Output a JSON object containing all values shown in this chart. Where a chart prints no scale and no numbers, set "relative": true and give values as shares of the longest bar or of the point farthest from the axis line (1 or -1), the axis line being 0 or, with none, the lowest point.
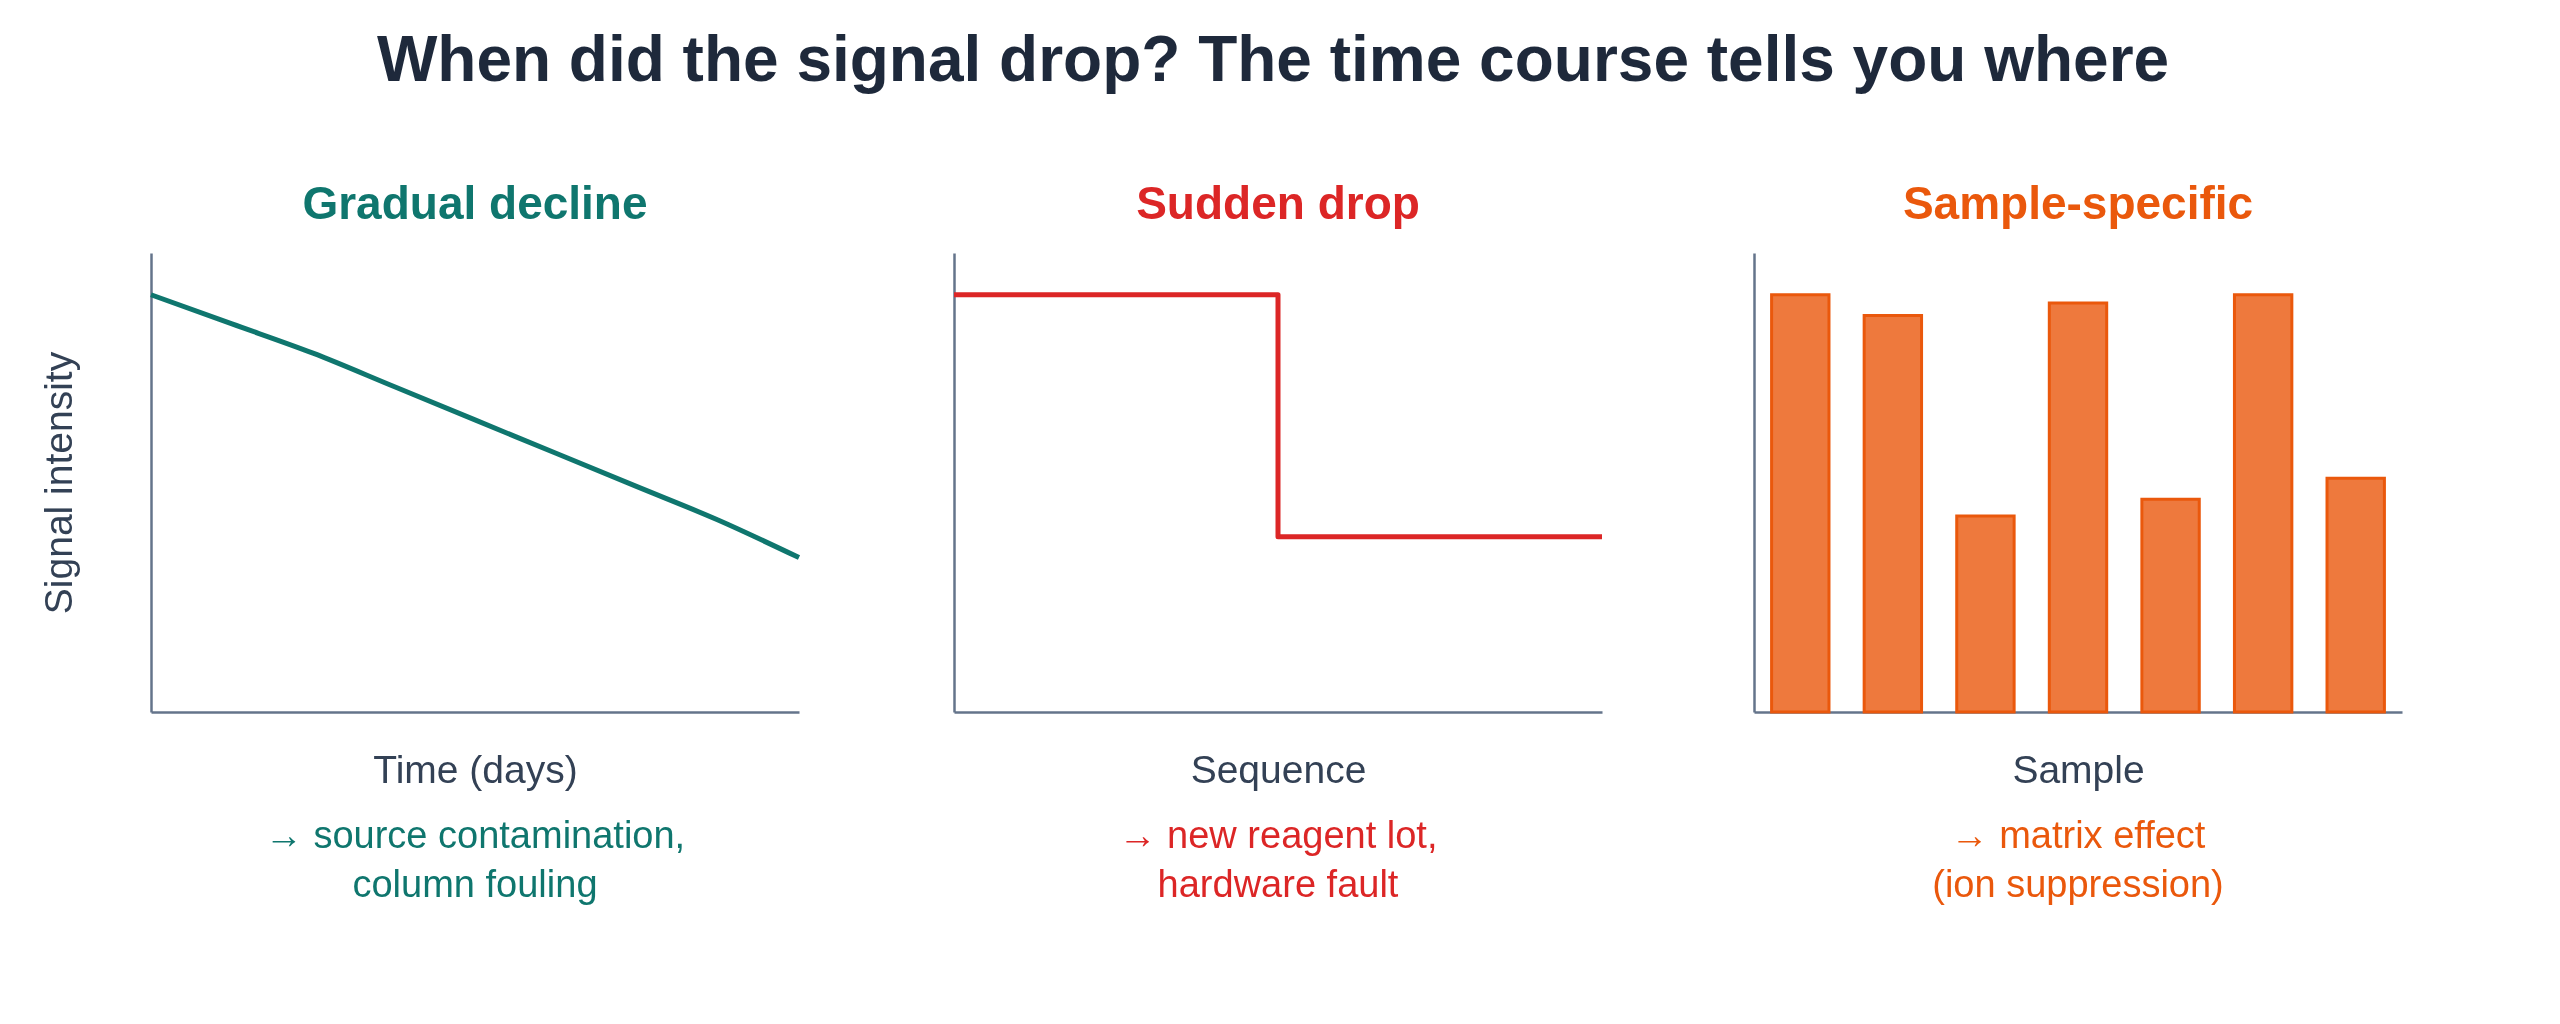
{
  "chart_data": [
    {
      "type": "other",
      "title": "When did the signal drop? The time course tells you where"
    },
    {
      "type": "line",
      "title": "Gradual decline",
      "xlabel": "Time (days)",
      "ylabel": "Signal intensity",
      "annotations": [
        "→ source contamination,\ncolumn fouling"
      ],
      "relative": true,
      "categories": [
        null,
        null,
        null,
        null,
        null,
        null,
        null,
        null,
        null
      ],
      "values": [
        1.0,
        0.93,
        0.86,
        0.78,
        0.7,
        0.62,
        0.54,
        0.46,
        0.37
      ],
      "color": "#0f766e"
    },
    {
      "type": "step",
      "title": "Sudden drop",
      "xlabel": "Sequence",
      "annotations": [
        "→ new reagent lot,\nhardware fault"
      ],
      "relative": true,
      "categories": [
        null,
        null,
        null
      ],
      "values": [
        1.0,
        0.42,
        0.42
      ],
      "color": "#dc2626"
    },
    {
      "type": "bar",
      "title": "Sample-specific",
      "xlabel": "Sample",
      "annotations": [
        "→ matrix effect\n(ion suppression)"
      ],
      "relative": true,
      "categories": [
        null,
        null,
        null,
        null,
        null,
        null,
        null
      ],
      "values": [
        1.0,
        0.95,
        0.47,
        0.98,
        0.51,
        1.0,
        0.56
      ],
      "color": "#ea580c"
    }
  ]
}
